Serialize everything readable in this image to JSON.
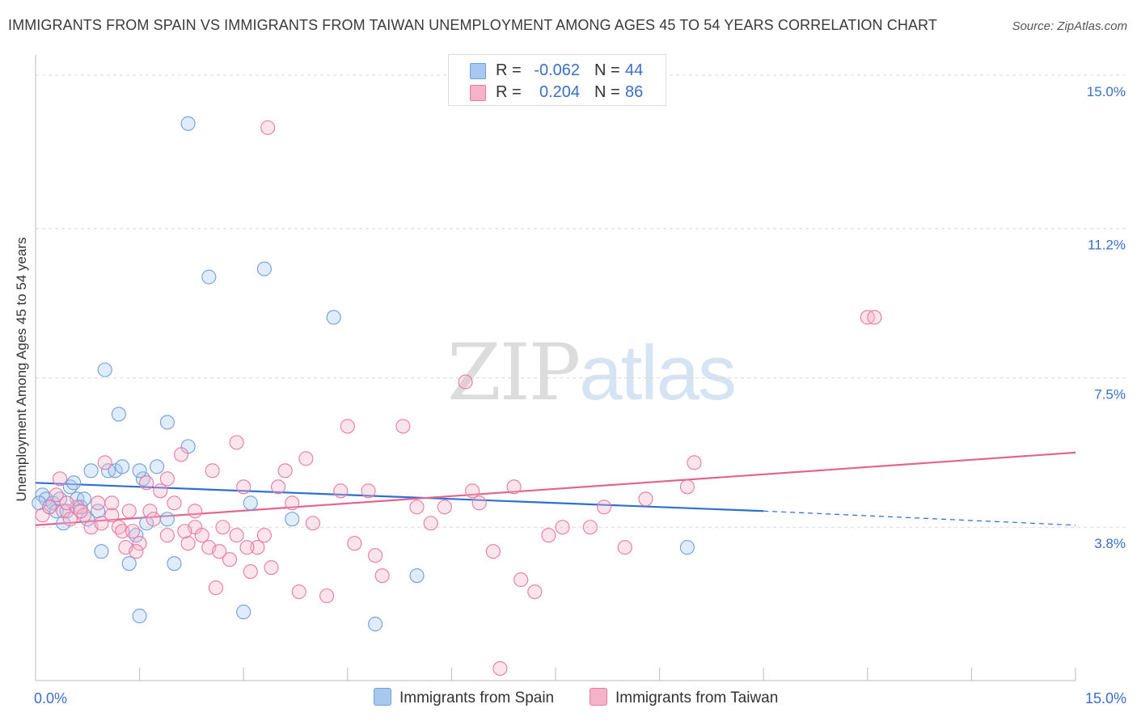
{
  "title": "IMMIGRANTS FROM SPAIN VS IMMIGRANTS FROM TAIWAN UNEMPLOYMENT AMONG AGES 45 TO 54 YEARS CORRELATION CHART",
  "source": "Source: ZipAtlas.com",
  "watermark": {
    "zip": "ZIP",
    "atlas": "atlas"
  },
  "stats": [
    {
      "r_label": "R =",
      "r_value": "-0.062",
      "n_label": "N =",
      "n_value": "44",
      "color": "#a9c8f0"
    },
    {
      "r_label": "R =",
      "r_value": "0.204",
      "n_label": "N =",
      "n_value": "86",
      "color": "#f5b3c9"
    }
  ],
  "legend": [
    {
      "label": "Immigrants from Spain",
      "color": "#a9c8f0"
    },
    {
      "label": "Immigrants from Taiwan",
      "color": "#f5b3c9"
    }
  ],
  "chart_data": {
    "type": "scatter",
    "xlabel": "",
    "ylabel": "Unemployment Among Ages 45 to 54 years",
    "xlim": [
      0,
      15
    ],
    "ylim": [
      0,
      15.5
    ],
    "x_tick_labels": [
      "0.0%",
      "15.0%"
    ],
    "y_ticks": [
      {
        "value": 3.8,
        "label": "3.8%"
      },
      {
        "value": 7.5,
        "label": "7.5%"
      },
      {
        "value": 11.2,
        "label": "11.2%"
      },
      {
        "value": 15.0,
        "label": "15.0%"
      }
    ],
    "series": [
      {
        "name": "Immigrants from Spain",
        "color": "#6e9fdf",
        "fill": "#a9c8f0",
        "points": [
          [
            0.1,
            4.6
          ],
          [
            0.15,
            4.5
          ],
          [
            0.2,
            4.3
          ],
          [
            0.25,
            4.4
          ],
          [
            0.3,
            4.2
          ],
          [
            0.35,
            4.5
          ],
          [
            0.4,
            3.9
          ],
          [
            0.45,
            4.2
          ],
          [
            0.5,
            4.8
          ],
          [
            0.55,
            4.9
          ],
          [
            0.6,
            4.5
          ],
          [
            0.65,
            4.3
          ],
          [
            0.75,
            4.0
          ],
          [
            0.8,
            5.2
          ],
          [
            0.95,
            3.2
          ],
          [
            1.05,
            5.2
          ],
          [
            1.15,
            5.2
          ],
          [
            1.25,
            5.3
          ],
          [
            1.35,
            2.9
          ],
          [
            1.45,
            3.6
          ],
          [
            1.55,
            5.0
          ],
          [
            1.75,
            5.3
          ],
          [
            1.9,
            4.0
          ],
          [
            2.0,
            2.9
          ],
          [
            2.2,
            5.8
          ],
          [
            1.2,
            6.6
          ],
          [
            1.0,
            7.7
          ],
          [
            1.9,
            6.4
          ],
          [
            1.5,
            5.2
          ],
          [
            2.5,
            10.0
          ],
          [
            3.3,
            10.2
          ],
          [
            2.2,
            13.8
          ],
          [
            4.3,
            9.0
          ],
          [
            3.1,
            4.4
          ],
          [
            3.7,
            4.0
          ],
          [
            5.5,
            2.6
          ],
          [
            4.9,
            1.4
          ],
          [
            3.0,
            1.7
          ],
          [
            1.5,
            1.6
          ],
          [
            9.4,
            3.3
          ],
          [
            0.9,
            4.2
          ],
          [
            0.7,
            4.5
          ],
          [
            1.6,
            3.9
          ],
          [
            0.05,
            4.4
          ]
        ]
      },
      {
        "name": "Immigrants from Taiwan",
        "color": "#e77aa0",
        "fill": "#f5b3c9",
        "points": [
          [
            0.1,
            4.1
          ],
          [
            0.2,
            4.3
          ],
          [
            0.3,
            4.6
          ],
          [
            0.35,
            5.0
          ],
          [
            0.4,
            4.2
          ],
          [
            0.5,
            4.0
          ],
          [
            0.6,
            4.3
          ],
          [
            0.7,
            4.1
          ],
          [
            0.8,
            3.8
          ],
          [
            0.9,
            4.4
          ],
          [
            1.0,
            5.4
          ],
          [
            1.1,
            4.1
          ],
          [
            1.2,
            3.8
          ],
          [
            1.25,
            3.7
          ],
          [
            1.3,
            3.3
          ],
          [
            1.35,
            4.2
          ],
          [
            1.4,
            3.7
          ],
          [
            1.5,
            3.4
          ],
          [
            1.6,
            4.9
          ],
          [
            1.65,
            4.2
          ],
          [
            1.7,
            4.0
          ],
          [
            1.8,
            4.7
          ],
          [
            1.9,
            3.6
          ],
          [
            2.0,
            4.4
          ],
          [
            2.1,
            5.6
          ],
          [
            2.2,
            3.4
          ],
          [
            2.3,
            3.8
          ],
          [
            2.4,
            3.6
          ],
          [
            2.5,
            3.3
          ],
          [
            2.55,
            5.2
          ],
          [
            2.6,
            2.3
          ],
          [
            2.7,
            3.8
          ],
          [
            2.8,
            3.0
          ],
          [
            2.9,
            3.6
          ],
          [
            3.0,
            4.8
          ],
          [
            3.1,
            2.7
          ],
          [
            3.2,
            3.3
          ],
          [
            3.3,
            3.6
          ],
          [
            3.4,
            2.8
          ],
          [
            3.5,
            4.8
          ],
          [
            3.6,
            5.2
          ],
          [
            3.7,
            4.4
          ],
          [
            3.8,
            2.2
          ],
          [
            3.9,
            5.5
          ],
          [
            4.0,
            3.9
          ],
          [
            4.2,
            2.1
          ],
          [
            4.4,
            4.7
          ],
          [
            4.5,
            6.3
          ],
          [
            4.6,
            3.4
          ],
          [
            4.8,
            4.7
          ],
          [
            4.9,
            3.1
          ],
          [
            5.0,
            2.6
          ],
          [
            5.3,
            6.3
          ],
          [
            5.5,
            4.3
          ],
          [
            5.9,
            4.3
          ],
          [
            6.2,
            7.4
          ],
          [
            6.4,
            4.4
          ],
          [
            6.6,
            3.2
          ],
          [
            6.7,
            0.3
          ],
          [
            6.9,
            4.8
          ],
          [
            7.0,
            2.5
          ],
          [
            7.2,
            2.2
          ],
          [
            7.4,
            3.6
          ],
          [
            7.6,
            3.8
          ],
          [
            8.0,
            3.8
          ],
          [
            8.2,
            4.3
          ],
          [
            8.5,
            3.3
          ],
          [
            8.8,
            4.5
          ],
          [
            9.4,
            4.8
          ],
          [
            9.5,
            5.4
          ],
          [
            12.0,
            9.0
          ],
          [
            12.1,
            9.0
          ],
          [
            2.9,
            5.9
          ],
          [
            1.9,
            5.0
          ],
          [
            2.3,
            4.2
          ],
          [
            1.1,
            4.4
          ],
          [
            0.95,
            3.9
          ],
          [
            0.65,
            4.2
          ],
          [
            0.45,
            4.4
          ],
          [
            1.45,
            3.2
          ],
          [
            2.15,
            3.7
          ],
          [
            2.65,
            3.2
          ],
          [
            3.05,
            3.3
          ],
          [
            5.7,
            3.9
          ],
          [
            3.35,
            13.7
          ],
          [
            6.3,
            4.7
          ]
        ]
      }
    ],
    "trend_lines": [
      {
        "series": "Immigrants from Spain",
        "x": [
          0.0,
          10.5
        ],
        "y": [
          4.9,
          4.2
        ],
        "dashed_extension_to_x": 15.0,
        "dashed_end_y": 3.85
      },
      {
        "series": "Immigrants from Taiwan",
        "x": [
          0.0,
          15.0
        ],
        "y": [
          3.85,
          5.65
        ]
      }
    ]
  }
}
